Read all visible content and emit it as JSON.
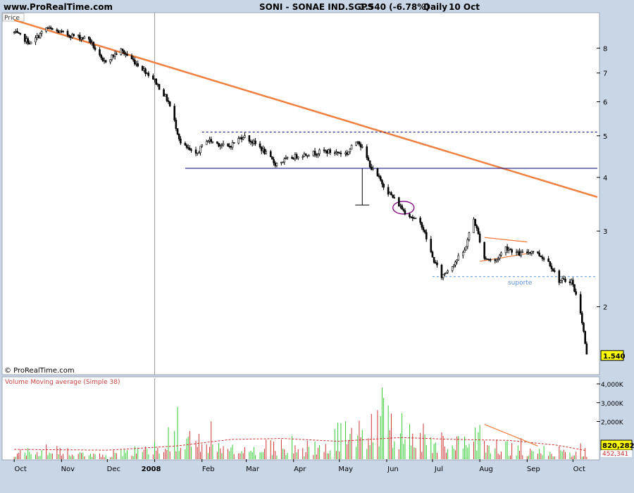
{
  "header": {
    "site": "www.ProRealTime.com",
    "title": "SONI - SONAE IND.SGPS",
    "price_change": "1.540 (-6.78%)",
    "period": "Daily",
    "date": "10 Oct"
  },
  "watermark": "© ProRealTime.com",
  "price_panel_label": "Price",
  "volume_panel_label": "Volume Moving average (Simple 38)",
  "colors": {
    "background": "#ffffff",
    "frame": "#c9d6e6",
    "candle": "#000000",
    "trendline": "#f08040",
    "support_line": "#000080",
    "volume_up": "#33cc33",
    "volume_down": "#cc3333",
    "volume_ma": "#cc3333",
    "label_badge": "#ffff00"
  },
  "chart_data": [
    {
      "type": "candlestick",
      "title": "SONI - SONAE IND.SGPS",
      "y_scale": "log",
      "ylim": [
        1.4,
        9.6
      ],
      "y_ticks": [
        "2",
        "3",
        "4",
        "5",
        "6",
        "7",
        "8"
      ],
      "x_ticks": [
        "Oct",
        "Nov",
        "Dec",
        "2008",
        "Feb",
        "Mar",
        "Apr",
        "May",
        "Jun",
        "Jul",
        "Aug",
        "Sep",
        "Oct"
      ],
      "last_price_label": "1.540",
      "series": [
        {
          "key_points": [
            [
              "2007-10-01",
              8.7
            ],
            [
              "2007-10-12",
              8.2
            ],
            [
              "2007-10-22",
              8.9
            ],
            [
              "2007-11-05",
              8.6
            ],
            [
              "2007-11-19",
              8.4
            ],
            [
              "2007-11-28",
              7.4
            ],
            [
              "2007-12-10",
              7.9
            ],
            [
              "2007-12-31",
              6.8
            ],
            [
              "2008-01-10",
              6.0
            ],
            [
              "2008-01-18",
              4.8
            ],
            [
              "2008-01-28",
              4.5
            ],
            [
              "2008-02-04",
              4.9
            ],
            [
              "2008-02-18",
              4.7
            ],
            [
              "2008-02-28",
              5.0
            ],
            [
              "2008-03-10",
              4.7
            ],
            [
              "2008-03-20",
              4.3
            ],
            [
              "2008-04-04",
              4.5
            ],
            [
              "2008-04-21",
              4.6
            ],
            [
              "2008-05-06",
              4.55
            ],
            [
              "2008-05-13",
              4.9
            ],
            [
              "2008-05-22",
              4.2
            ],
            [
              "2008-06-02",
              3.7
            ],
            [
              "2008-06-12",
              3.35
            ],
            [
              "2008-06-24",
              3.1
            ],
            [
              "2008-07-01",
              2.6
            ],
            [
              "2008-07-07",
              2.35
            ],
            [
              "2008-07-14",
              2.5
            ],
            [
              "2008-07-22",
              2.7
            ],
            [
              "2008-07-28",
              3.2
            ],
            [
              "2008-08-04",
              2.6
            ],
            [
              "2008-08-11",
              2.55
            ],
            [
              "2008-08-18",
              2.75
            ],
            [
              "2008-08-27",
              2.65
            ],
            [
              "2008-09-05",
              2.7
            ],
            [
              "2008-09-15",
              2.55
            ],
            [
              "2008-09-22",
              2.3
            ],
            [
              "2008-09-30",
              2.3
            ],
            [
              "2008-10-06",
              1.95
            ],
            [
              "2008-10-10",
              1.54
            ]
          ]
        }
      ],
      "trendlines": [
        {
          "label": "",
          "from": [
            "2007-10-01",
            9.3
          ],
          "to": [
            "2008-10-17",
            3.6
          ]
        },
        {
          "label": "",
          "type": "horizontal",
          "style": "dashed",
          "y": 5.1,
          "from": "2008-02-01",
          "to": "2008-10-17"
        },
        {
          "label": "",
          "type": "horizontal",
          "style": "solid",
          "y": 4.2,
          "from": "2008-01-21",
          "to": "2008-10-17"
        },
        {
          "label": "suporte",
          "type": "horizontal",
          "style": "dashed",
          "y": 2.35,
          "from": "2008-07-01",
          "to": "2008-10-17"
        },
        {
          "label": "",
          "from": [
            "2008-08-04",
            2.9
          ],
          "to": [
            "2008-09-01",
            2.83
          ]
        },
        {
          "label": "",
          "from": [
            "2008-08-01",
            2.55
          ],
          "to": [
            "2008-09-01",
            2.66
          ]
        }
      ]
    },
    {
      "type": "bar",
      "title": "Volume Moving average (Simple 38)",
      "y_ticks": [
        "4,000K",
        "3,000K",
        "2,000K"
      ],
      "ylim": [
        0,
        4300
      ],
      "last_volume_label": "820,282",
      "last_ma_label": "452,341",
      "key_points": [
        [
          "2007-10-15",
          900
        ],
        [
          "2007-11-15",
          700
        ],
        [
          "2007-12-15",
          650
        ],
        [
          "2008-01-21",
          2900
        ],
        [
          "2008-02-15",
          1700
        ],
        [
          "2008-03-15",
          1300
        ],
        [
          "2008-04-15",
          900
        ],
        [
          "2008-05-13",
          3500
        ],
        [
          "2008-06-02",
          3800
        ],
        [
          "2008-07-01",
          2000
        ],
        [
          "2008-07-28",
          2800
        ],
        [
          "2008-08-15",
          1200
        ],
        [
          "2008-09-15",
          800
        ],
        [
          "2008-10-10",
          820
        ]
      ],
      "ma_key_points": [
        [
          "2007-10-01",
          520
        ],
        [
          "2007-12-01",
          480
        ],
        [
          "2008-01-15",
          700
        ],
        [
          "2008-02-20",
          1050
        ],
        [
          "2008-03-25",
          1100
        ],
        [
          "2008-04-30",
          950
        ],
        [
          "2008-06-10",
          1150
        ],
        [
          "2008-07-15",
          1050
        ],
        [
          "2008-08-20",
          1000
        ],
        [
          "2008-09-20",
          750
        ],
        [
          "2008-10-10",
          452
        ]
      ]
    }
  ]
}
